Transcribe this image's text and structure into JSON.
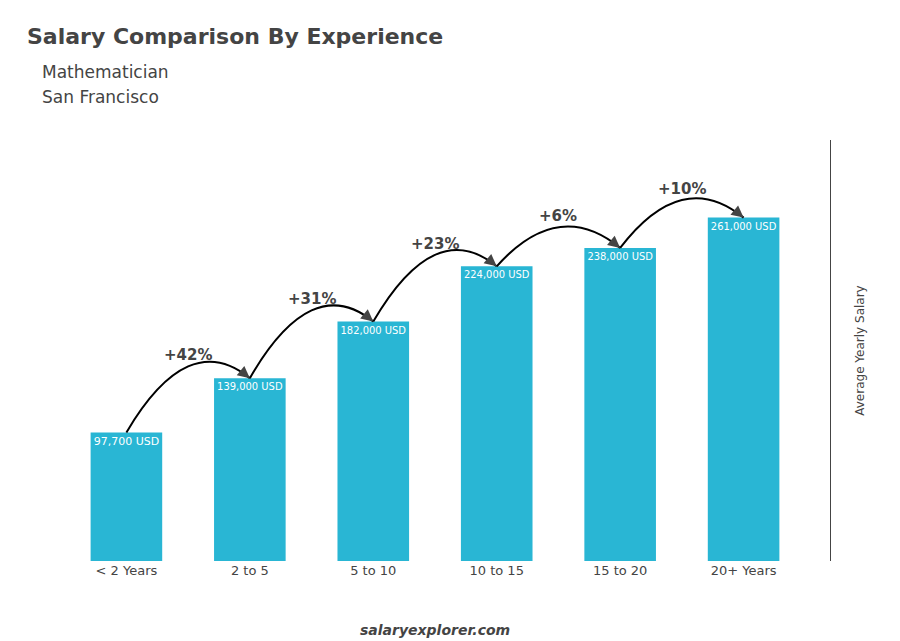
{
  "chart_data": {
    "type": "bar",
    "title": "Salary Comparison By Experience",
    "subtitle1": "Mathematician",
    "subtitle2": "San Francisco",
    "ylabel": "Average Yearly Salary",
    "footer": "salaryexplorer.com",
    "categories": [
      "< 2 Years",
      "2 to 5",
      "5 to 10",
      "10 to 15",
      "15 to 20",
      "20+ Years"
    ],
    "values": [
      97700,
      139000,
      182000,
      224000,
      238000,
      261000
    ],
    "value_labels": [
      "97,700 USD",
      "139,000 USD",
      "182,000 USD",
      "224,000 USD",
      "238,000 USD",
      "261,000 USD"
    ],
    "data_labels": true,
    "color": "#29b6d4",
    "ylim": [
      0,
      320000
    ],
    "grid": false,
    "tick_labels": "x",
    "annotations": [
      {
        "from": "< 2 Years",
        "to": "2 to 5",
        "text": "+42%"
      },
      {
        "from": "2 to 5",
        "to": "5 to 10",
        "text": "+31%"
      },
      {
        "from": "5 to 10",
        "to": "10 to 15",
        "text": "+23%"
      },
      {
        "from": "10 to 15",
        "to": "15 to 20",
        "text": "+6%"
      },
      {
        "from": "15 to 20",
        "to": "20+ Years",
        "text": "+10%"
      }
    ]
  }
}
